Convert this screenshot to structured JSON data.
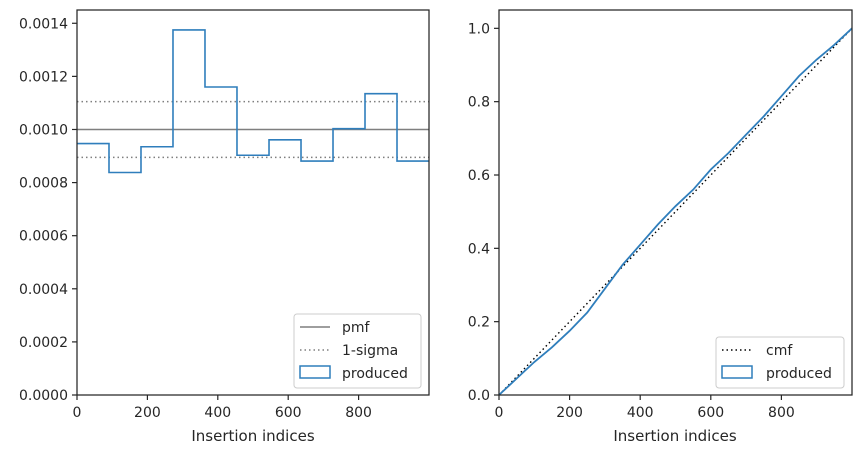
{
  "chart_data": [
    {
      "type": "histogram",
      "title": "",
      "xlabel": "Insertion indices",
      "ylabel": "",
      "xlim": [
        0,
        1000
      ],
      "ylim": [
        0,
        0.00145
      ],
      "xticks": [
        0,
        200,
        400,
        600,
        800
      ],
      "xtick_labels": [
        "0",
        "200",
        "400",
        "600",
        "800"
      ],
      "yticks": [
        0,
        0.0002,
        0.0004,
        0.0006,
        0.0008,
        0.001,
        0.0012,
        0.0014
      ],
      "ytick_labels": [
        "0.0000",
        "0.0002",
        "0.0004",
        "0.0006",
        "0.0008",
        "0.0010",
        "0.0012",
        "0.0014"
      ],
      "bin_edges": [
        0,
        90.9,
        181.8,
        272.7,
        363.6,
        454.5,
        545.5,
        636.4,
        727.3,
        818.2,
        909.1,
        1000
      ],
      "densities": [
        0.000947,
        0.000838,
        0.000935,
        0.001375,
        0.00116,
        0.000903,
        0.000961,
        0.000881,
        0.001003,
        0.001135,
        0.000881
      ],
      "reference_lines": [
        {
          "name": "pmf",
          "y": 0.001,
          "style": "solid",
          "color": "#7f7f7f"
        },
        {
          "name": "1-sigma",
          "y": [
            0.000895,
            0.001105
          ],
          "style": "dotted",
          "color": "#7f7f7f"
        }
      ],
      "series_color": "#2f7ebc",
      "legend": [
        "pmf",
        "1-sigma",
        "produced"
      ],
      "legend_position": "lower right"
    },
    {
      "type": "line",
      "title": "",
      "xlabel": "Insertion indices",
      "ylabel": "",
      "xlim": [
        0,
        1000
      ],
      "ylim": [
        0,
        1.05
      ],
      "xticks": [
        0,
        200,
        400,
        600,
        800
      ],
      "xtick_labels": [
        "0",
        "200",
        "400",
        "600",
        "800"
      ],
      "yticks": [
        0,
        0.2,
        0.4,
        0.6,
        0.8,
        1.0
      ],
      "ytick_labels": [
        "0.0",
        "0.2",
        "0.4",
        "0.6",
        "0.8",
        "1.0"
      ],
      "series": [
        {
          "name": "cmf",
          "style": "dotted",
          "color": "#000000",
          "x": [
            0,
            1000
          ],
          "y": [
            0,
            1.0
          ]
        },
        {
          "name": "produced",
          "style": "solid",
          "color": "#2f7ebc",
          "x": [
            0,
            50,
            100,
            150,
            200,
            250,
            300,
            350,
            400,
            450,
            500,
            550,
            600,
            650,
            700,
            750,
            800,
            850,
            900,
            950,
            1000
          ],
          "y": [
            0,
            0.045,
            0.09,
            0.13,
            0.175,
            0.225,
            0.29,
            0.355,
            0.41,
            0.465,
            0.515,
            0.56,
            0.615,
            0.66,
            0.71,
            0.76,
            0.815,
            0.87,
            0.915,
            0.955,
            1.0
          ]
        }
      ],
      "legend": [
        "cmf",
        "produced"
      ],
      "legend_position": "lower right"
    }
  ]
}
